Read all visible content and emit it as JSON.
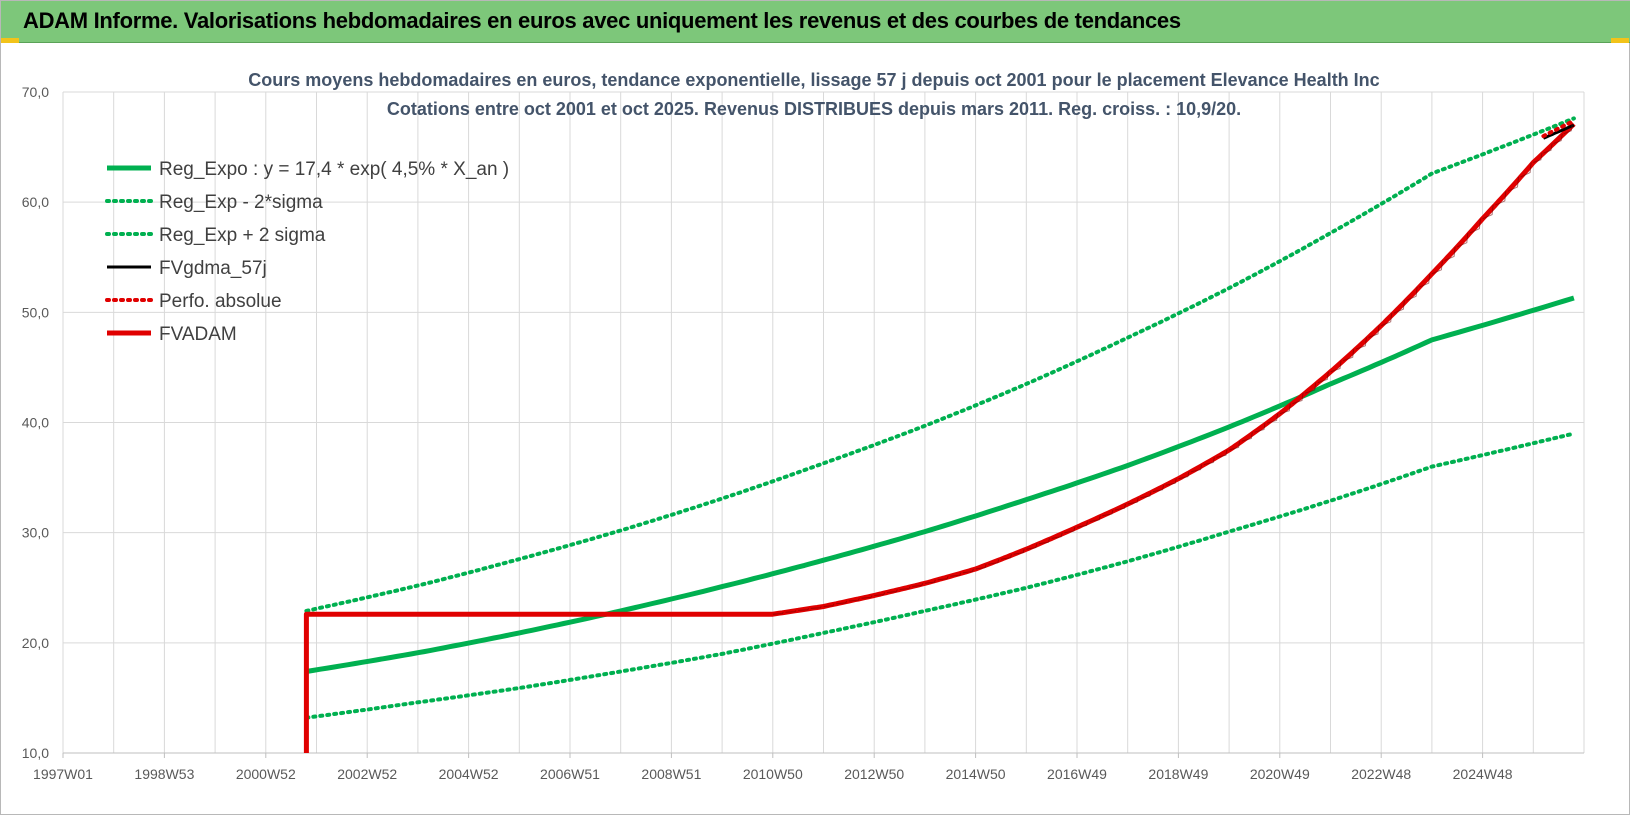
{
  "banner": {
    "title": "ADAM Informe. Valorisations hebdomadaires en euros avec uniquement les revenus et des courbes de tendances"
  },
  "colors": {
    "banner_bg": "#7dc77a",
    "green": "#00b050",
    "red": "#e00000",
    "black": "#000000",
    "grid": "#d9d9d9",
    "corner": "#f2c31a"
  },
  "chart_data": {
    "type": "line",
    "title": "Cours moyens hebdomadaires en euros, tendance exponentielle, lissage 57 j depuis oct 2001 pour le placement Elevance Health Inc",
    "subtitle": "Cotations entre oct 2001 et oct 2025. Revenus DISTRIBUES depuis mars 2011. Reg. croiss. : 10,9/20.",
    "xlabel": "",
    "ylabel": "",
    "x_range": [
      1997.0,
      2027.0
    ],
    "ylim": [
      10,
      70
    ],
    "y_ticks": [
      "10,0",
      "20,0",
      "30,0",
      "40,0",
      "50,0",
      "60,0",
      "70,0"
    ],
    "x_ticks": [
      {
        "label": "1997W01",
        "x": 1997.0
      },
      {
        "label": "1998W53",
        "x": 1999.0
      },
      {
        "label": "2000W52",
        "x": 2001.0
      },
      {
        "label": "2002W52",
        "x": 2003.0
      },
      {
        "label": "2004W52",
        "x": 2005.0
      },
      {
        "label": "2006W51",
        "x": 2007.0
      },
      {
        "label": "2008W51",
        "x": 2009.0
      },
      {
        "label": "2010W50",
        "x": 2011.0
      },
      {
        "label": "2012W50",
        "x": 2013.0
      },
      {
        "label": "2014W50",
        "x": 2015.0
      },
      {
        "label": "2016W49",
        "x": 2017.0
      },
      {
        "label": "2018W49",
        "x": 2019.0
      },
      {
        "label": "2020W49",
        "x": 2021.0
      },
      {
        "label": "2022W48",
        "x": 2023.0
      },
      {
        "label": "2024W48",
        "x": 2025.0
      }
    ],
    "grid": true,
    "legend_position": "top-left",
    "series": [
      {
        "name": "Reg_Expo : y = 17,4 * exp( 4,5% *  X_an )",
        "style": "solid-thick",
        "color": "#00b050",
        "x": [
          2001.8,
          2004.0,
          2006.0,
          2008.0,
          2010.0,
          2012.0,
          2014.0,
          2016.0,
          2018.0,
          2020.0,
          2022.0,
          2024.0,
          2026.8
        ],
        "values": [
          17.4,
          19.1,
          20.9,
          22.9,
          25.1,
          27.5,
          30.1,
          33.0,
          36.1,
          39.6,
          43.5,
          47.5,
          51.3
        ]
      },
      {
        "name": "Reg_Exp - 2*sigma",
        "style": "dotted",
        "color": "#00b050",
        "x": [
          2001.8,
          2004.0,
          2006.0,
          2008.0,
          2010.0,
          2012.0,
          2014.0,
          2016.0,
          2018.0,
          2020.0,
          2022.0,
          2024.0,
          2026.8
        ],
        "values": [
          13.2,
          14.6,
          15.9,
          17.4,
          19.0,
          20.9,
          22.9,
          25.0,
          27.4,
          30.1,
          32.9,
          36.0,
          39.0
        ]
      },
      {
        "name": "Reg_Exp + 2 sigma",
        "style": "dotted",
        "color": "#00b050",
        "x": [
          2001.8,
          2004.0,
          2006.0,
          2008.0,
          2010.0,
          2012.0,
          2014.0,
          2016.0,
          2018.0,
          2020.0,
          2022.0,
          2024.0,
          2026.8
        ],
        "values": [
          22.9,
          25.2,
          27.6,
          30.2,
          33.1,
          36.3,
          39.7,
          43.5,
          47.7,
          52.2,
          57.2,
          62.6,
          67.6
        ]
      },
      {
        "name": "FVgdma_57j",
        "style": "solid",
        "color": "#000000",
        "x": [
          2026.2,
          2026.8
        ],
        "values": [
          65.8,
          67.0
        ]
      },
      {
        "name": "Perfo. absolue",
        "style": "dotted",
        "color": "#e00000",
        "x": [
          2026.2,
          2026.8
        ],
        "values": [
          66.0,
          67.4
        ]
      },
      {
        "name": "FVADAM",
        "style": "solid-thick",
        "color": "#e00000",
        "x": [
          2001.8,
          2001.8,
          2011.0,
          2012.0,
          2013.0,
          2014.0,
          2015.0,
          2016.0,
          2017.0,
          2018.0,
          2019.0,
          2020.0,
          2021.0,
          2022.0,
          2023.0,
          2024.0,
          2025.0,
          2026.0,
          2026.8
        ],
        "values": [
          10.0,
          22.6,
          22.6,
          23.3,
          24.3,
          25.4,
          26.7,
          28.5,
          30.5,
          32.6,
          34.9,
          37.5,
          40.8,
          44.6,
          48.8,
          53.5,
          58.5,
          63.6,
          67.1
        ]
      }
    ]
  }
}
